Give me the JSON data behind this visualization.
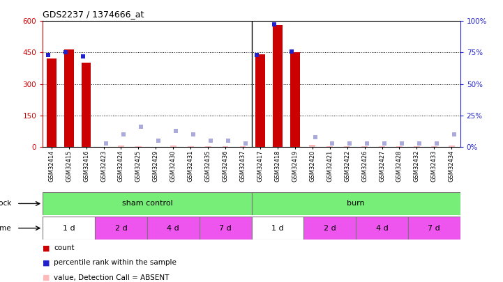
{
  "title": "GDS2237 / 1374666_at",
  "samples": [
    "GSM32414",
    "GSM32415",
    "GSM32416",
    "GSM32423",
    "GSM32424",
    "GSM32425",
    "GSM32429",
    "GSM32430",
    "GSM32431",
    "GSM32435",
    "GSM32436",
    "GSM32437",
    "GSM32417",
    "GSM32418",
    "GSM32419",
    "GSM32420",
    "GSM32421",
    "GSM32422",
    "GSM32426",
    "GSM32427",
    "GSM32428",
    "GSM32432",
    "GSM32433",
    "GSM32434"
  ],
  "count": [
    420,
    465,
    400,
    0,
    0,
    0,
    0,
    0,
    0,
    0,
    0,
    0,
    440,
    580,
    450,
    0,
    0,
    0,
    0,
    0,
    0,
    0,
    0,
    0
  ],
  "percentile_rank": [
    73,
    75,
    72,
    0,
    0,
    0,
    0,
    0,
    0,
    0,
    0,
    0,
    73,
    97,
    76,
    0,
    0,
    0,
    0,
    0,
    0,
    0,
    0,
    0
  ],
  "absent_count": [
    0,
    0,
    0,
    0,
    8,
    5,
    0,
    8,
    5,
    5,
    5,
    5,
    0,
    0,
    0,
    10,
    5,
    5,
    5,
    5,
    5,
    5,
    5,
    8
  ],
  "absent_rank_pct": [
    0,
    0,
    0,
    3,
    10,
    16,
    5,
    13,
    10,
    5,
    5,
    3,
    0,
    0,
    0,
    8,
    3,
    3,
    3,
    3,
    3,
    3,
    3,
    10
  ],
  "ylim_left": [
    0,
    600
  ],
  "ylim_right": [
    0,
    100
  ],
  "yticks_left": [
    0,
    150,
    300,
    450,
    600
  ],
  "yticks_right": [
    0,
    25,
    50,
    75,
    100
  ],
  "bar_color_red": "#cc0000",
  "bar_color_blue": "#2222cc",
  "absent_bar_color": "#ffbbbb",
  "absent_rank_color": "#aaaadd",
  "shock_color": "#77ee77",
  "time_groups": [
    {
      "label": "1 d",
      "start": 0,
      "end": 3,
      "color": "#ffffff"
    },
    {
      "label": "2 d",
      "start": 3,
      "end": 6,
      "color": "#ee55ee"
    },
    {
      "label": "4 d",
      "start": 6,
      "end": 9,
      "color": "#ee55ee"
    },
    {
      "label": "7 d",
      "start": 9,
      "end": 12,
      "color": "#ee55ee"
    },
    {
      "label": "1 d",
      "start": 12,
      "end": 15,
      "color": "#ffffff"
    },
    {
      "label": "2 d",
      "start": 15,
      "end": 18,
      "color": "#ee55ee"
    },
    {
      "label": "4 d",
      "start": 18,
      "end": 21,
      "color": "#ee55ee"
    },
    {
      "label": "7 d",
      "start": 21,
      "end": 24,
      "color": "#ee55ee"
    }
  ]
}
